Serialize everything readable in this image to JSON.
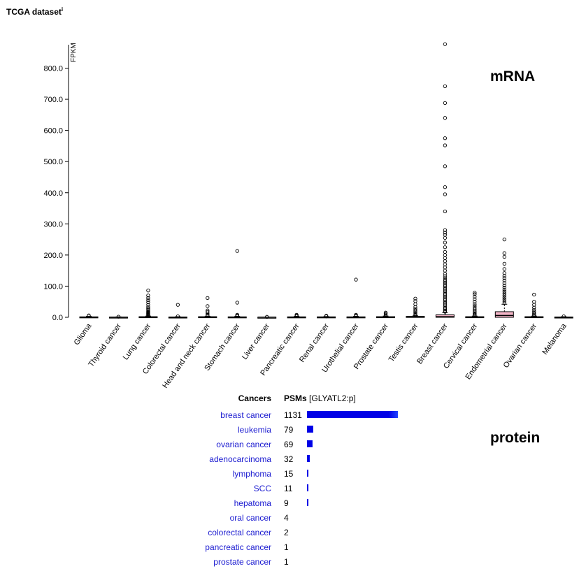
{
  "dataset_title": "TCGA dataset",
  "dataset_info_marker": "i",
  "mrna_label": "mRNA",
  "protein_label": "protein",
  "chart_data": [
    {
      "type": "box",
      "ylabel": "FPKM",
      "ylim": [
        0,
        880
      ],
      "yticks": [
        0,
        100,
        200,
        300,
        400,
        500,
        600,
        700,
        800
      ],
      "ytick_labels": [
        "0.0",
        "100.0",
        "200.0",
        "300.0",
        "400.0",
        "500.0",
        "600.0",
        "700.0",
        "800.0"
      ],
      "box_colors": {
        "default": "#ffffff",
        "highlight": "#f4b6c8"
      },
      "series": [
        {
          "name": "Glioma",
          "q1": 0,
          "median": 0.5,
          "q3": 1.5,
          "whisker_high": 3,
          "outliers": [
            5,
            6
          ]
        },
        {
          "name": "Thyroid cancer",
          "q1": 0,
          "median": 0.3,
          "q3": 0.8,
          "whisker_high": 1.5,
          "outliers": [
            2
          ]
        },
        {
          "name": "Lung cancer",
          "q1": 0,
          "median": 0.5,
          "q3": 2,
          "whisker_high": 4,
          "outliers": [
            5,
            7,
            9,
            11,
            13,
            15,
            17,
            20,
            24,
            28,
            33,
            40,
            48,
            55,
            62,
            70,
            86
          ]
        },
        {
          "name": "Colorectal cancer",
          "q1": 0,
          "median": 0.3,
          "q3": 1,
          "whisker_high": 2,
          "outliers": [
            3,
            40
          ]
        },
        {
          "name": "Head and neck cancer",
          "q1": 0,
          "median": 0.5,
          "q3": 2,
          "whisker_high": 3.5,
          "outliers": [
            5,
            8,
            12,
            17,
            22,
            36,
            62
          ]
        },
        {
          "name": "Stomach cancer",
          "q1": 0,
          "median": 0.5,
          "q3": 1.5,
          "whisker_high": 3,
          "outliers": [
            4,
            6,
            8,
            47,
            213
          ]
        },
        {
          "name": "Liver cancer",
          "q1": 0,
          "median": 0.2,
          "q3": 0.5,
          "whisker_high": 1,
          "outliers": [
            1.5
          ]
        },
        {
          "name": "Pancreatic cancer",
          "q1": 0,
          "median": 0.5,
          "q3": 1.5,
          "whisker_high": 3,
          "outliers": [
            4,
            6,
            8
          ]
        },
        {
          "name": "Renal cancer",
          "q1": 0,
          "median": 0.5,
          "q3": 1.5,
          "whisker_high": 2.5,
          "outliers": [
            3,
            5
          ]
        },
        {
          "name": "Urothelial cancer",
          "q1": 0,
          "median": 0.5,
          "q3": 1.5,
          "whisker_high": 3,
          "outliers": [
            4,
            6,
            8,
            121
          ]
        },
        {
          "name": "Prostate cancer",
          "q1": 0,
          "median": 0.5,
          "q3": 2,
          "whisker_high": 4,
          "outliers": [
            6,
            9,
            12,
            15
          ]
        },
        {
          "name": "Testis cancer",
          "q1": 0,
          "median": 1,
          "q3": 3,
          "whisker_high": 5,
          "outliers": [
            7,
            10,
            14,
            18,
            22,
            27,
            33,
            42,
            52,
            60
          ]
        },
        {
          "name": "Breast cancer",
          "q1": 0,
          "median": 2,
          "q3": 8,
          "whisker_high": 15,
          "outliers": [
            18,
            22,
            26,
            30,
            35,
            40,
            45,
            50,
            55,
            60,
            65,
            70,
            75,
            80,
            85,
            90,
            95,
            100,
            105,
            110,
            115,
            120,
            126,
            132,
            140,
            150,
            160,
            170,
            180,
            190,
            200,
            210,
            225,
            240,
            255,
            265,
            272,
            280,
            340,
            395,
            418,
            485,
            552,
            575,
            640,
            688,
            742,
            877
          ]
        },
        {
          "name": "Cervical cancer",
          "q1": 0,
          "median": 0.5,
          "q3": 2,
          "whisker_high": 4,
          "outliers": [
            6,
            9,
            12,
            16,
            20,
            25,
            30,
            36,
            42,
            50,
            58,
            66,
            74,
            79
          ]
        },
        {
          "name": "Endometrial cancer",
          "q1": 0,
          "median": 6,
          "q3": 18,
          "whisker_high": 42,
          "outliers": [
            46,
            52,
            58,
            64,
            70,
            76,
            82,
            88,
            95,
            102,
            110,
            118,
            126,
            133,
            142,
            155,
            172,
            194,
            206,
            250
          ]
        },
        {
          "name": "Ovarian cancer",
          "q1": 0,
          "median": 0.5,
          "q3": 2,
          "whisker_high": 4,
          "outliers": [
            6,
            9,
            13,
            18,
            24,
            31,
            40,
            50,
            73
          ]
        },
        {
          "name": "Melanoma",
          "q1": 0,
          "median": 0.3,
          "q3": 1,
          "whisker_high": 2,
          "outliers": [
            3
          ]
        }
      ]
    },
    {
      "type": "bar",
      "orientation": "horizontal",
      "header_category": "Cancers",
      "header_value": "PSMs",
      "header_value_note": "[GLYATL2:p]",
      "bar_color": "#0000e6",
      "link_color": "#1a1ad0",
      "categories": [
        "breast cancer",
        "leukemia",
        "ovarian cancer",
        "adenocarcinoma",
        "lymphoma",
        "SCC",
        "hepatoma",
        "oral cancer",
        "colorectal cancer",
        "pancreatic cancer",
        "prostate cancer"
      ],
      "values": [
        1131,
        79,
        69,
        32,
        15,
        11,
        9,
        4,
        2,
        1,
        1
      ],
      "xlim": [
        0,
        1131
      ]
    }
  ]
}
